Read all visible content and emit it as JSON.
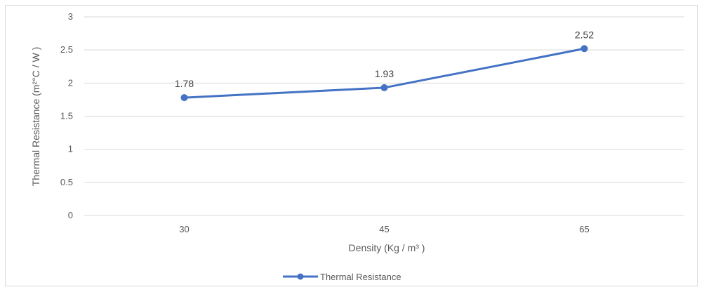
{
  "chart_data": {
    "type": "line",
    "categories": [
      "30",
      "45",
      "65"
    ],
    "series": [
      {
        "name": "Thermal Resistance",
        "values": [
          1.78,
          1.93,
          2.52
        ],
        "color": "#4472c4"
      }
    ],
    "data_labels": [
      "1.78",
      "1.93",
      "2.52"
    ],
    "xlabel": "Density (Kg / m³ )",
    "ylabel": "Thermal Resistance (m²°C / W )",
    "ylim": [
      0,
      3
    ],
    "yticks": [
      "0",
      "0.5",
      "1",
      "1.5",
      "2",
      "2.5",
      "3"
    ],
    "grid": true,
    "legend_position": "bottom"
  }
}
